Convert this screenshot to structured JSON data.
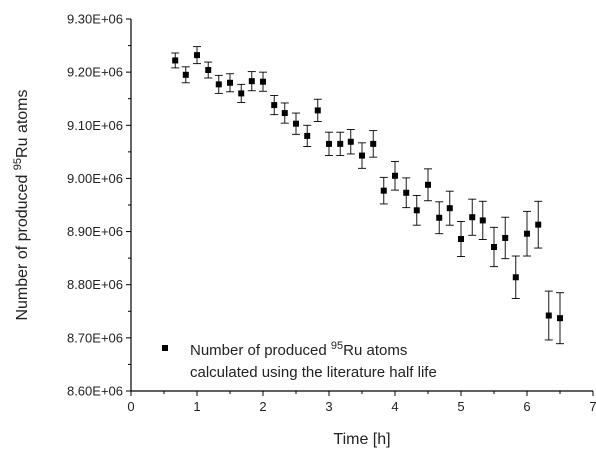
{
  "chart_data": {
    "type": "scatter",
    "xlabel": "Time [h]",
    "ylabel_prefix": "Number of produced ",
    "ylabel_sup": "95",
    "ylabel_suffix": "Ru atoms",
    "xlim": [
      0,
      7
    ],
    "ylim": [
      8600000,
      9300000
    ],
    "x_ticks": [
      0,
      1,
      2,
      3,
      4,
      5,
      6,
      7
    ],
    "x_tick_labels": [
      "0",
      "1",
      "2",
      "3",
      "4",
      "5",
      "6",
      "7"
    ],
    "y_ticks": [
      8600000,
      8700000,
      8800000,
      8900000,
      9000000,
      9100000,
      9200000,
      9300000
    ],
    "y_tick_labels": [
      "8.60E+06",
      "8.70E+06",
      "8.80E+06",
      "8.90E+06",
      "9.00E+06",
      "9.10E+06",
      "9.20E+06",
      "9.30E+06"
    ],
    "grid": false,
    "legend_position": "bottom-left",
    "legend": {
      "line1_prefix": "Number of produced ",
      "line1_sup": "95",
      "line1_suffix": "Ru atoms",
      "line2": "calculated using the literature half life"
    },
    "series": [
      {
        "marker": "square",
        "color": "#000000",
        "points": [
          {
            "x": 0.67,
            "y": 9222000,
            "err": 14000
          },
          {
            "x": 0.83,
            "y": 9195000,
            "err": 15000
          },
          {
            "x": 1.0,
            "y": 9232000,
            "err": 16000
          },
          {
            "x": 1.17,
            "y": 9204000,
            "err": 15000
          },
          {
            "x": 1.33,
            "y": 9177000,
            "err": 17000
          },
          {
            "x": 1.5,
            "y": 9180000,
            "err": 17000
          },
          {
            "x": 1.67,
            "y": 9160000,
            "err": 17000
          },
          {
            "x": 1.83,
            "y": 9183000,
            "err": 18000
          },
          {
            "x": 2.0,
            "y": 9182000,
            "err": 18000
          },
          {
            "x": 2.17,
            "y": 9138000,
            "err": 18000
          },
          {
            "x": 2.33,
            "y": 9123000,
            "err": 19000
          },
          {
            "x": 2.5,
            "y": 9103000,
            "err": 20000
          },
          {
            "x": 2.67,
            "y": 9080000,
            "err": 20000
          },
          {
            "x": 2.83,
            "y": 9128000,
            "err": 21000
          },
          {
            "x": 3.0,
            "y": 9065000,
            "err": 22000
          },
          {
            "x": 3.17,
            "y": 9065000,
            "err": 22000
          },
          {
            "x": 3.33,
            "y": 9069000,
            "err": 23000
          },
          {
            "x": 3.5,
            "y": 9043000,
            "err": 24000
          },
          {
            "x": 3.67,
            "y": 9065000,
            "err": 25000
          },
          {
            "x": 3.83,
            "y": 8977000,
            "err": 25000
          },
          {
            "x": 4.0,
            "y": 9005000,
            "err": 27000
          },
          {
            "x": 4.17,
            "y": 8973000,
            "err": 28000
          },
          {
            "x": 4.33,
            "y": 8940000,
            "err": 28000
          },
          {
            "x": 4.5,
            "y": 8988000,
            "err": 30000
          },
          {
            "x": 4.67,
            "y": 8926000,
            "err": 30000
          },
          {
            "x": 4.83,
            "y": 8944000,
            "err": 32000
          },
          {
            "x": 5.0,
            "y": 8886000,
            "err": 33000
          },
          {
            "x": 5.17,
            "y": 8927000,
            "err": 34000
          },
          {
            "x": 5.33,
            "y": 8921000,
            "err": 36000
          },
          {
            "x": 5.5,
            "y": 8871000,
            "err": 37000
          },
          {
            "x": 5.67,
            "y": 8888000,
            "err": 39000
          },
          {
            "x": 5.83,
            "y": 8814000,
            "err": 40000
          },
          {
            "x": 6.0,
            "y": 8896000,
            "err": 42000
          },
          {
            "x": 6.17,
            "y": 8913000,
            "err": 44000
          },
          {
            "x": 6.33,
            "y": 8742000,
            "err": 46000
          },
          {
            "x": 6.5,
            "y": 8737000,
            "err": 48000
          }
        ]
      }
    ]
  }
}
